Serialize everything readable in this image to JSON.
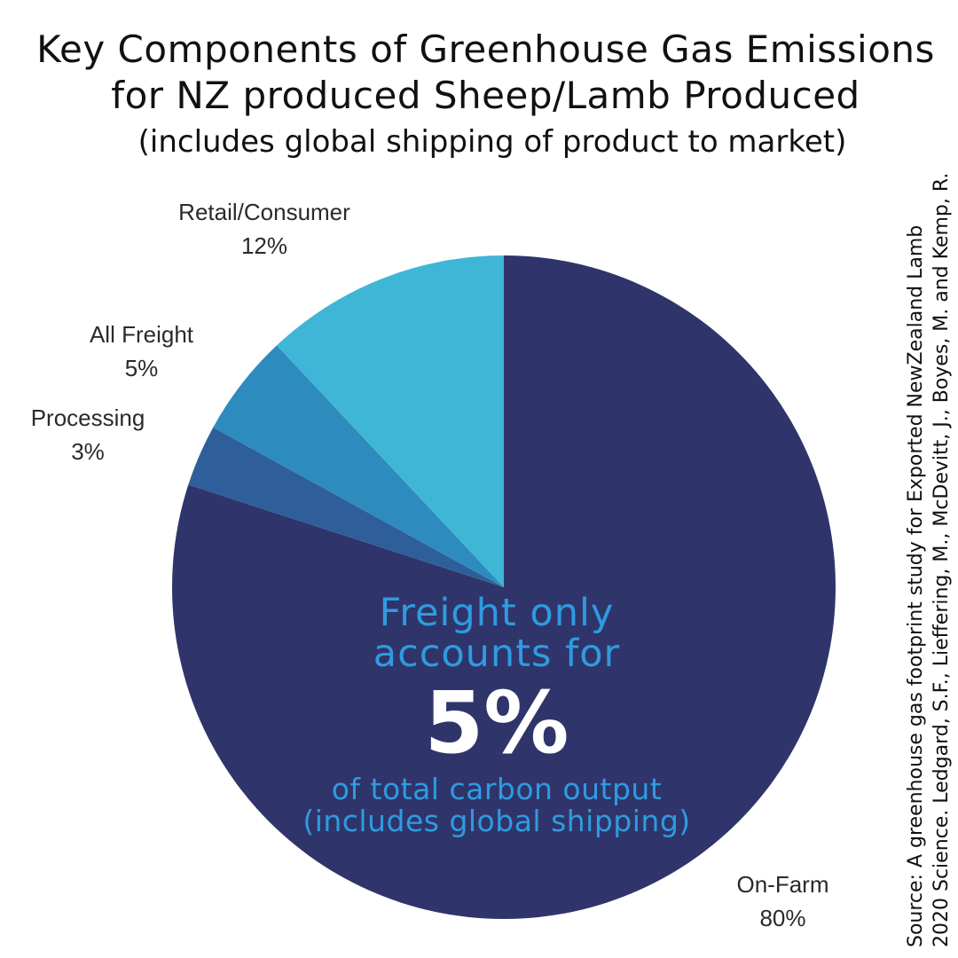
{
  "title_line1": "Key Components of Greenhouse Gas Emissions",
  "title_line2": "for NZ produced Sheep/Lamb Produced",
  "subtitle": "(includes global shipping of product to market)",
  "center_text": {
    "line1": "Freight only",
    "line2": "accounts for",
    "big": "5%",
    "line3": "of total carbon output",
    "line4": "(includes global shipping)"
  },
  "source": {
    "line1": "Source: A greenhouse gas footprint study for Exported NewZealand Lamb",
    "line2": "2020 Science.  Ledgard, S.F., Lieffering, M., McDevitt, J., Boyes, M. and Kemp, R."
  },
  "chart_data": {
    "type": "pie",
    "title": "Key Components of Greenhouse Gas Emissions for NZ produced Sheep/Lamb Produced",
    "subtitle": "(includes global shipping of product to market)",
    "slices": [
      {
        "label": "On-Farm",
        "value": 80,
        "value_label": "80%",
        "color": "#2f356b"
      },
      {
        "label": "Processing",
        "value": 3,
        "value_label": "3%",
        "color": "#2e5f9a"
      },
      {
        "label": "All Freight",
        "value": 5,
        "value_label": "5%",
        "color": "#2e8bbd"
      },
      {
        "label": "Retail/Consumer",
        "value": 12,
        "value_label": "12%",
        "color": "#40b6d6"
      }
    ],
    "start": "12 o'clock",
    "direction": "clockwise"
  }
}
